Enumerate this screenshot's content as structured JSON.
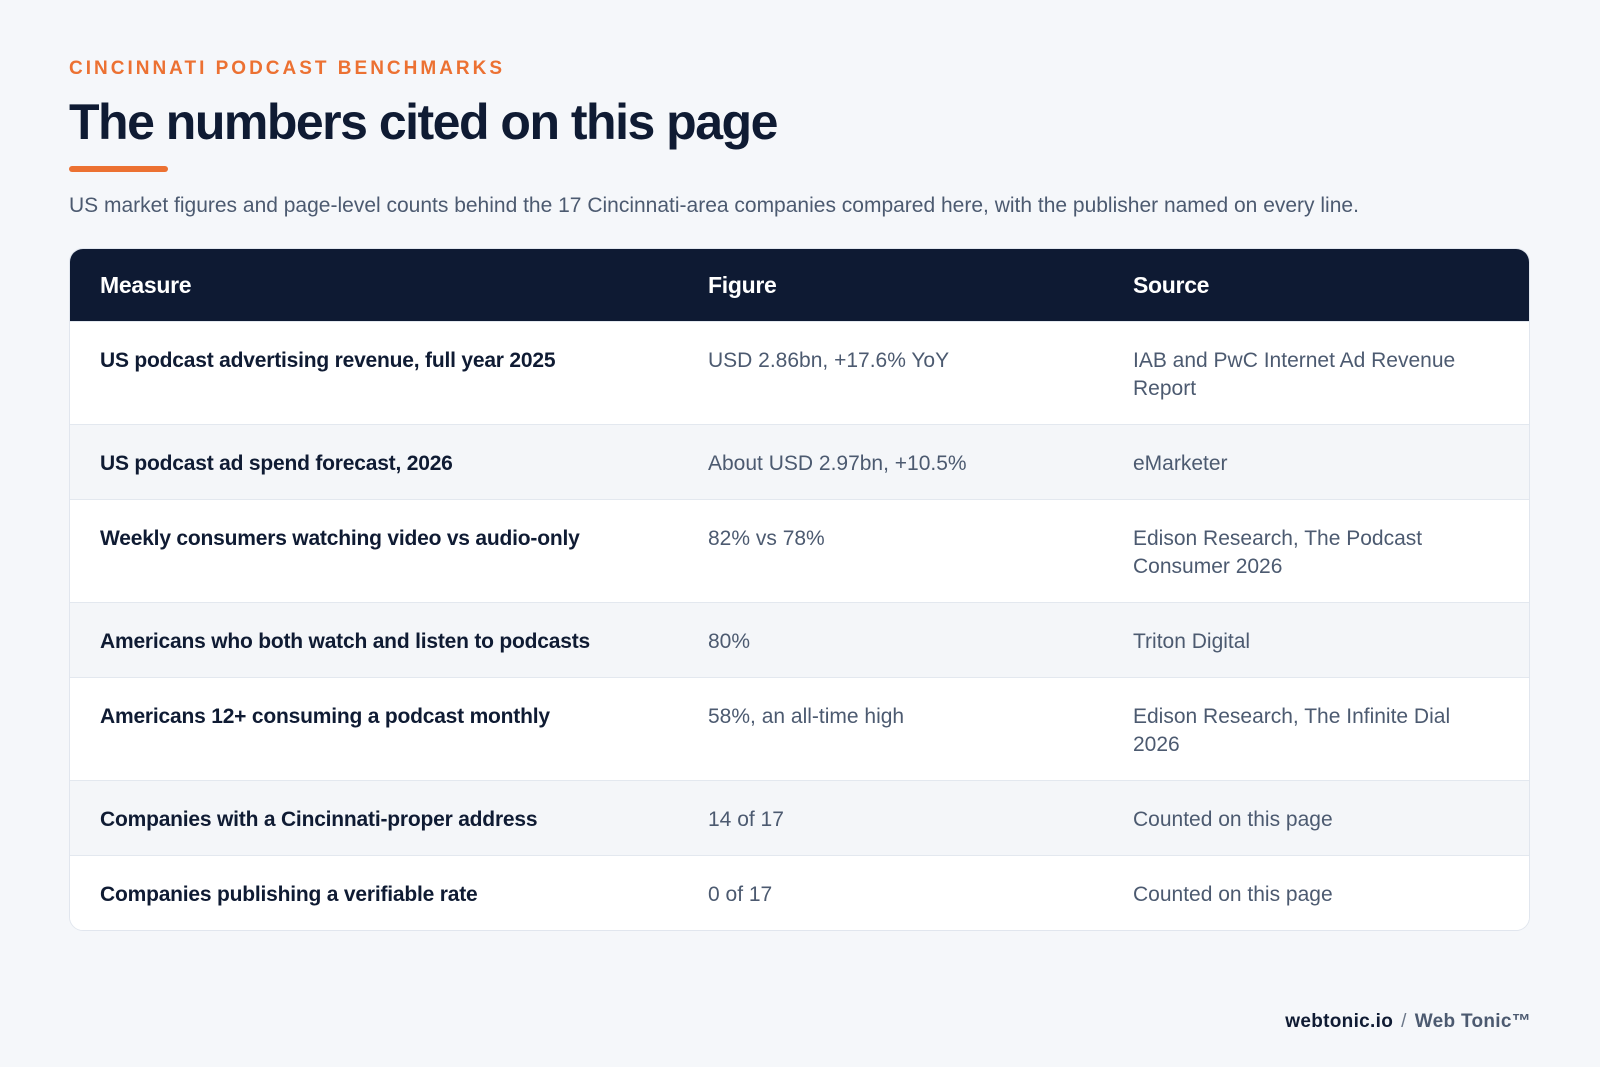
{
  "header": {
    "eyebrow": "CINCINNATI PODCAST BENCHMARKS",
    "title": "The numbers cited on this page",
    "subtitle": "US market figures and page-level counts behind the 17 Cincinnati-area companies compared here, with the publisher named on every line."
  },
  "table": {
    "columns": [
      "Measure",
      "Figure",
      "Source"
    ],
    "rows": [
      {
        "measure": "US podcast advertising revenue, full year 2025",
        "figure": "USD 2.86bn, +17.6% YoY",
        "source": "IAB and PwC Internet Ad Revenue Report"
      },
      {
        "measure": "US podcast ad spend forecast, 2026",
        "figure": "About USD 2.97bn, +10.5%",
        "source": "eMarketer"
      },
      {
        "measure": "Weekly consumers watching video vs audio-only",
        "figure": "82% vs 78%",
        "source": "Edison Research, The Podcast Consumer 2026"
      },
      {
        "measure": "Americans who both watch and listen to podcasts",
        "figure": "80%",
        "source": "Triton Digital"
      },
      {
        "measure": "Americans 12+ consuming a podcast monthly",
        "figure": "58%, an all-time high",
        "source": "Edison Research, The Infinite Dial 2026"
      },
      {
        "measure": "Companies with a Cincinnati-proper address",
        "figure": "14 of 17",
        "source": "Counted on this page"
      },
      {
        "measure": "Companies publishing a verifiable rate",
        "figure": "0 of 17",
        "source": "Counted on this page"
      }
    ]
  },
  "footer": {
    "domain": "webtonic.io",
    "separator": "/",
    "brand": "Web Tonic™"
  },
  "colors": {
    "accent": "#ec7132",
    "header_bg": "#0e1a33",
    "page_bg": "#f5f7fa"
  }
}
